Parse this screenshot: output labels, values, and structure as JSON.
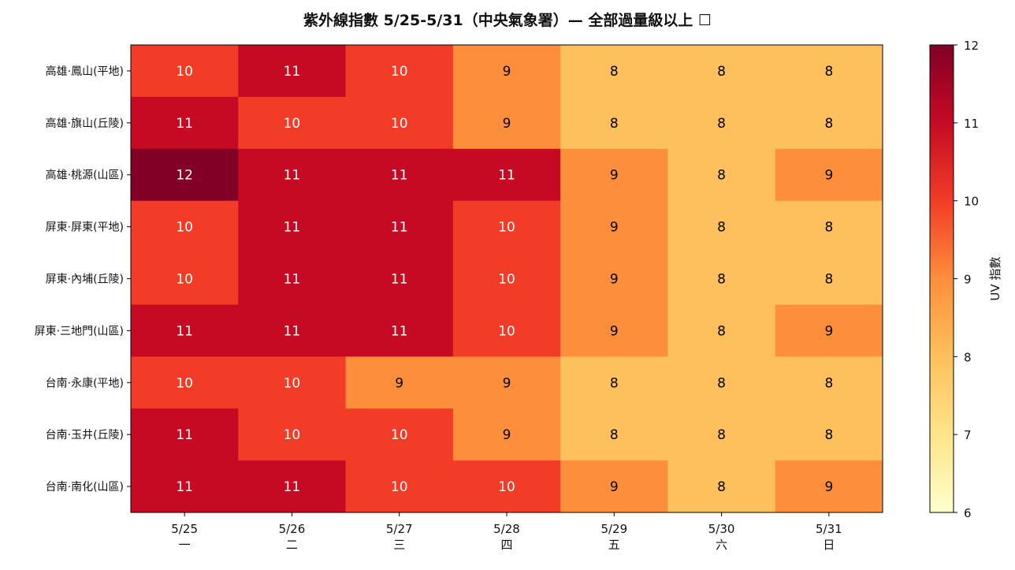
{
  "chart_data": {
    "type": "heatmap",
    "title": "紫外線指數 5/25-5/31（中央氣象署）— 全部過量級以上 ☐",
    "x_categories": [
      "5/25",
      "5/26",
      "5/27",
      "5/28",
      "5/29",
      "5/30",
      "5/31"
    ],
    "x_weekdays": [
      "一",
      "二",
      "三",
      "四",
      "五",
      "六",
      "日"
    ],
    "y_categories": [
      "高雄·鳳山(平地)",
      "高雄·旗山(丘陵)",
      "高雄·桃源(山區)",
      "屏東·屏東(平地)",
      "屏東·內埔(丘陵)",
      "屏東·三地門(山區)",
      "台南·永康(平地)",
      "台南·玉井(丘陵)",
      "台南·南化(山區)"
    ],
    "values": [
      [
        10,
        11,
        10,
        9,
        8,
        8,
        8
      ],
      [
        11,
        10,
        10,
        9,
        8,
        8,
        8
      ],
      [
        12,
        11,
        11,
        11,
        9,
        8,
        9
      ],
      [
        10,
        11,
        11,
        10,
        9,
        8,
        8
      ],
      [
        10,
        11,
        11,
        10,
        9,
        8,
        8
      ],
      [
        11,
        11,
        11,
        10,
        9,
        8,
        9
      ],
      [
        10,
        10,
        9,
        9,
        8,
        8,
        8
      ],
      [
        11,
        10,
        10,
        9,
        8,
        8,
        8
      ],
      [
        11,
        11,
        10,
        10,
        9,
        8,
        9
      ]
    ],
    "colorbar": {
      "label": "UV 指數",
      "range": [
        6,
        12
      ],
      "ticks": [
        6,
        7,
        8,
        9,
        10,
        11,
        12
      ],
      "colormap": "YlOrRd"
    },
    "cell_colors": {
      "8": "#fec05c",
      "9": "#fd8e3c",
      "10": "#f23c27",
      "11": "#c60a23",
      "12": "#820026"
    },
    "colormap_stops": [
      {
        "value": 6,
        "color": "#ffffcc"
      },
      {
        "value": 7,
        "color": "#fee48a"
      },
      {
        "value": 8,
        "color": "#fec05c"
      },
      {
        "value": 9,
        "color": "#fd8e3c"
      },
      {
        "value": 10,
        "color": "#f23c27"
      },
      {
        "value": 11,
        "color": "#c60a23"
      },
      {
        "value": 12,
        "color": "#820026"
      }
    ],
    "label_colors": {
      "light": "#ffffff",
      "dark": "#000000"
    }
  }
}
